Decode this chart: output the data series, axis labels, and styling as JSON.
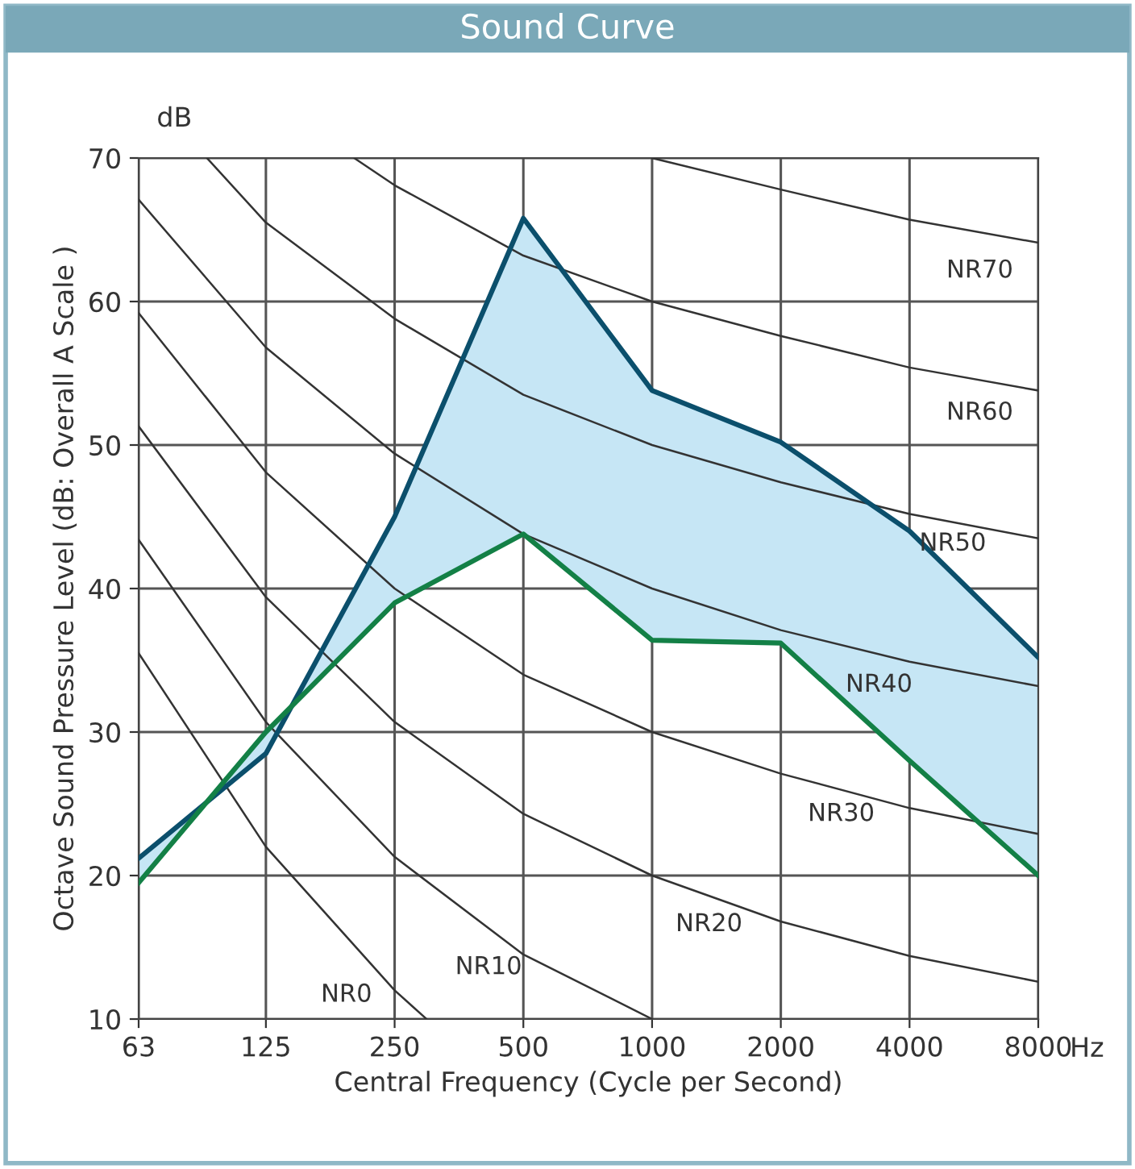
{
  "chart_data": {
    "type": "line",
    "title": "Sound Curve",
    "xlabel": "Central Frequency (Cycle per Second)",
    "ylabel": "Octave Sound Pressure Level (dB: Overall A Scale )",
    "x": [
      63,
      125,
      250,
      500,
      1000,
      2000,
      4000,
      8000
    ],
    "log": "x",
    "xlim": [
      63,
      8000
    ],
    "xticks": [
      63,
      125,
      250,
      500,
      1000,
      2000,
      4000,
      8000
    ],
    "ylim": [
      10,
      70
    ],
    "yticks": [
      10,
      20,
      30,
      40,
      50,
      60,
      70
    ],
    "grid": true,
    "marker": "none",
    "line_style": "solid",
    "series": [
      {
        "color": "#0b4f6c",
        "values": [
          21.2,
          28.5,
          45,
          65.8,
          53.8,
          50.2,
          44,
          35.2
        ],
        "lower": [
          19.5,
          30,
          39,
          43.8,
          36.4,
          36.2,
          28,
          20
        ],
        "upper": [
          21.2,
          28.5,
          45,
          65.8,
          53.8,
          50.2,
          44,
          35.2
        ]
      },
      {
        "color": "#138046",
        "values": [
          19.5,
          30,
          39,
          43.8,
          36.4,
          36.2,
          28,
          20
        ]
      },
      {
        "name": "NR0",
        "color": "#333333",
        "x": [
          63,
          125,
          250,
          297
        ],
        "values": [
          35.5,
          22,
          12,
          10
        ]
      },
      {
        "name": "NR10",
        "color": "#333333",
        "x": [
          63,
          125,
          250,
          500,
          1000
        ],
        "values": [
          43.4,
          30.7,
          21.3,
          14.5,
          10
        ]
      },
      {
        "name": "NR20",
        "color": "#333333",
        "x": [
          63,
          125,
          250,
          500,
          1000,
          2000,
          4000,
          8000
        ],
        "values": [
          51.3,
          39.4,
          30.7,
          24.3,
          20,
          16.8,
          14.4,
          12.6
        ]
      },
      {
        "name": "NR30",
        "color": "#333333",
        "x": [
          63,
          125,
          250,
          500,
          1000,
          2000,
          4000,
          8000
        ],
        "values": [
          59.2,
          48.1,
          40,
          34,
          30,
          27.1,
          24.7,
          22.9
        ]
      },
      {
        "name": "NR40",
        "color": "#333333",
        "x": [
          63,
          125,
          250,
          500,
          1000,
          2000,
          4000,
          8000
        ],
        "values": [
          67.1,
          56.8,
          49.4,
          43.8,
          40,
          37.1,
          34.9,
          33.2
        ]
      },
      {
        "name": "NR50",
        "color": "#333333",
        "x": [
          91,
          125,
          250,
          500,
          1000,
          2000,
          4000,
          8000
        ],
        "values": [
          70,
          65.5,
          58.8,
          53.5,
          50,
          47.4,
          45.2,
          43.5
        ]
      },
      {
        "name": "NR60",
        "color": "#333333",
        "x": [
          201,
          250,
          500,
          1000,
          2000,
          4000,
          8000
        ],
        "values": [
          70,
          68.1,
          63.2,
          60,
          57.6,
          55.4,
          53.8
        ]
      },
      {
        "name": "NR70",
        "color": "#333333",
        "x": [
          1000,
          2000,
          4000,
          8000
        ],
        "values": [
          70,
          67.8,
          65.7,
          64.1
        ]
      }
    ],
    "annotations": [
      "dB",
      "Hz"
    ]
  }
}
